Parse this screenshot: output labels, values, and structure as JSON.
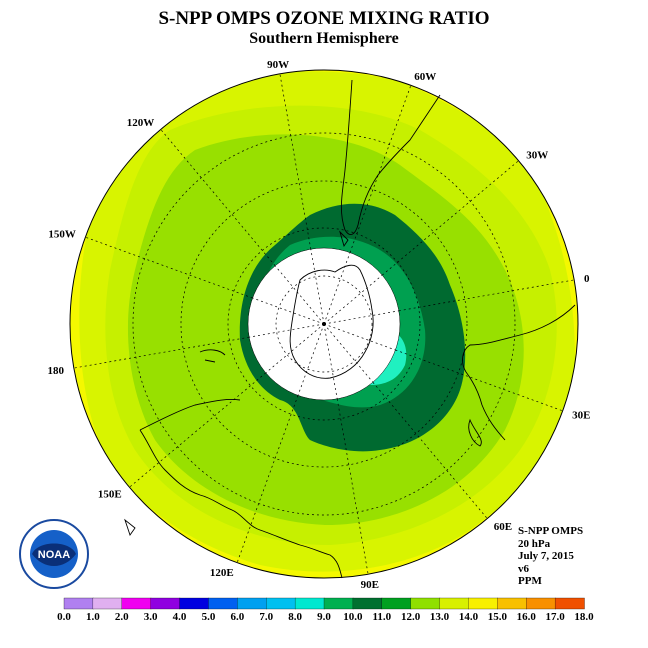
{
  "title": "S-NPP OMPS OZONE MIXING RATIO",
  "subtitle": "Southern Hemisphere",
  "info": {
    "instrument": "S-NPP OMPS",
    "level": "20 hPa",
    "date": "July 7, 2015",
    "version": "v6",
    "units": "PPM"
  },
  "longitude_labels": [
    "90W",
    "60W",
    "30W",
    "0",
    "30E",
    "60E",
    "90E",
    "120E",
    "150E",
    "180",
    "150W",
    "120W"
  ],
  "logo_text": "NOAA",
  "colorbar": {
    "ticks": [
      "0.0",
      "1.0",
      "2.0",
      "3.0",
      "4.0",
      "5.0",
      "6.0",
      "7.0",
      "8.0",
      "9.0",
      "10.0",
      "11.0",
      "12.0",
      "13.0",
      "14.0",
      "15.0",
      "16.0",
      "17.0",
      "18.0"
    ],
    "colors": [
      "#b080f0",
      "#e0b0f0",
      "#f000f0",
      "#9000e0",
      "#0000e0",
      "#0060f0",
      "#00a0f0",
      "#00c0f0",
      "#00e8d0",
      "#00b050",
      "#007030",
      "#00a020",
      "#90e000",
      "#d8f000",
      "#f8f000",
      "#f8c000",
      "#f89000",
      "#f05000",
      "#e80000",
      "#7a5030"
    ]
  },
  "colors": {
    "level_11_12": "#c8f000",
    "level_12_13": "#e8f800",
    "level_13_14": "#f8f800",
    "level_10_11": "#98e000",
    "level_9_10": "#006a30",
    "level_8_9": "#00a050",
    "level_7_8": "#20f0c0"
  }
}
